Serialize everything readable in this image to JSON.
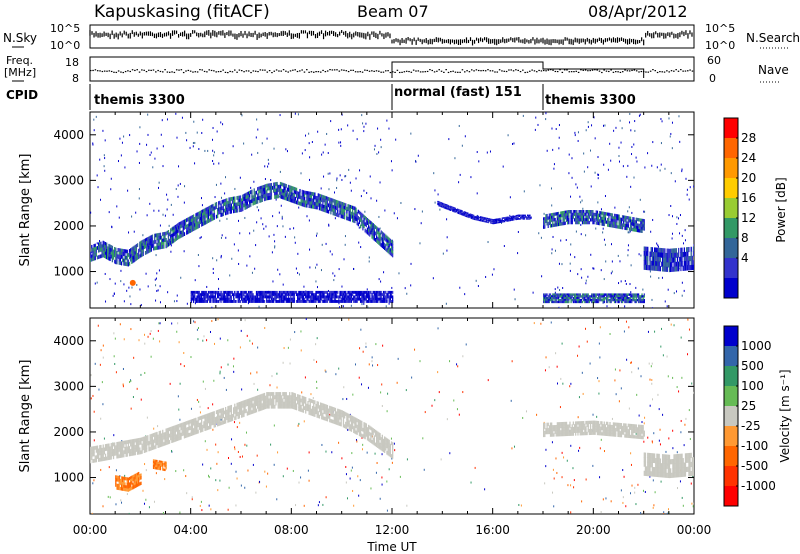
{
  "header": {
    "station": "Kapuskasing (fitACF)",
    "beam": "Beam 07",
    "date": "08/Apr/2012"
  },
  "left_labels": {
    "nsky": "N.Sky",
    "freq_line1": "Freq.",
    "freq_line2": "[MHz]",
    "cpid": "CPID"
  },
  "right_labels": {
    "nsearch": "N.Search",
    "nave": "Nave"
  },
  "small_axes": {
    "nsky_ticks": [
      "10^5",
      "10^0"
    ],
    "nsearch_ticks": [
      "10^5",
      "10^0"
    ],
    "freq_ticks": [
      "18",
      "8"
    ],
    "nave_ticks": [
      "60",
      "0"
    ]
  },
  "cpid_segments": [
    {
      "label": "themis 3300",
      "start_hour": 0,
      "end_hour": 12
    },
    {
      "label": "normal (fast) 151",
      "start_hour": 12,
      "end_hour": 18
    },
    {
      "label": "themis 3300",
      "start_hour": 18,
      "end_hour": 24
    }
  ],
  "power_colorbar": {
    "label": "Power [dB]",
    "ticks": [
      "28",
      "24",
      "20",
      "16",
      "12",
      "8",
      "4"
    ],
    "colors": [
      "#ff0000",
      "#ff6600",
      "#ff9900",
      "#ffcc00",
      "#99cc33",
      "#339966",
      "#336699",
      "#3333cc",
      "#0000cc"
    ]
  },
  "velocity_colorbar": {
    "label": "Velocity [m s⁻¹]",
    "ticks": [
      "1000",
      "500",
      "100",
      "25",
      "-25",
      "-100",
      "-500",
      "-1000"
    ],
    "colors": [
      "#0000cc",
      "#3366aa",
      "#339966",
      "#66bb55",
      "#c8c8c0",
      "#ff9933",
      "#ff6600",
      "#ff3300",
      "#ff0000"
    ]
  },
  "chart_data": [
    {
      "type": "heatmap",
      "panel": "power",
      "ylabel": "Slant Range [km]",
      "ylim": [
        200,
        4500
      ],
      "yticks": [
        "4000",
        "3000",
        "2000",
        "1000"
      ],
      "xlim_hours": [
        0,
        24
      ],
      "bands": [
        {
          "t": [
            0,
            0.5,
            1,
            1.5,
            2,
            2.5,
            3,
            3.5,
            4,
            4.5,
            5,
            5.5,
            6,
            6.5,
            7,
            7.5,
            8,
            8.5,
            9,
            9.5,
            10,
            10.5,
            11,
            11.5,
            12
          ],
          "r": [
            1400,
            1500,
            1350,
            1300,
            1500,
            1650,
            1700,
            1900,
            2050,
            2200,
            2350,
            2450,
            2500,
            2650,
            2750,
            2800,
            2700,
            2600,
            2550,
            2450,
            2350,
            2250,
            2000,
            1750,
            1500
          ],
          "width_km": 350,
          "level": 4
        },
        {
          "t": [
            13.8,
            14.5,
            15.2,
            16,
            16.5,
            17,
            17.5
          ],
          "r": [
            2500,
            2350,
            2200,
            2100,
            2150,
            2200,
            2200
          ],
          "width_km": 100,
          "level": 2
        },
        {
          "t": [
            18,
            19,
            20,
            21,
            22
          ],
          "r": [
            2100,
            2200,
            2200,
            2100,
            2000
          ],
          "width_km": 300,
          "level": 4
        },
        {
          "t": [
            22,
            23,
            24
          ],
          "r": [
            1300,
            1250,
            1300
          ],
          "width_km": 500,
          "level": 3
        },
        {
          "t": [
            4,
            5,
            6,
            7,
            8,
            9,
            10,
            11,
            12
          ],
          "r": [
            450,
            450,
            450,
            450,
            450,
            450,
            450,
            450,
            450
          ],
          "width_km": 250,
          "level": 1
        },
        {
          "t": [
            18,
            20,
            22
          ],
          "r": [
            420,
            420,
            420
          ],
          "width_km": 200,
          "level": 4
        }
      ],
      "hotspot": {
        "t": 1.7,
        "r": 750,
        "level": 28
      }
    },
    {
      "type": "heatmap",
      "panel": "velocity",
      "ylabel": "Slant Range [km]",
      "xlabel": "Time UT",
      "ylim": [
        200,
        4500
      ],
      "yticks": [
        "4000",
        "3000",
        "2000",
        "1000"
      ],
      "xticks": [
        "00:00",
        "04:00",
        "08:00",
        "12:00",
        "16:00",
        "20:00",
        "00:00"
      ],
      "xlim_hours": [
        0,
        24
      ],
      "bands": [
        {
          "t": [
            0,
            1,
            2,
            3,
            4,
            5,
            6,
            7,
            8,
            9,
            10,
            11,
            12
          ],
          "r": [
            1500,
            1600,
            1700,
            1900,
            2100,
            2300,
            2500,
            2700,
            2700,
            2500,
            2300,
            2000,
            1600
          ],
          "width_km": 350,
          "level": 0
        },
        {
          "t": [
            18,
            20,
            22
          ],
          "r": [
            2050,
            2100,
            2000
          ],
          "width_km": 300,
          "level": 0
        },
        {
          "t": [
            22,
            23,
            24
          ],
          "r": [
            1300,
            1250,
            1300
          ],
          "width_km": 500,
          "level": 0
        },
        {
          "t": [
            1,
            1.5,
            2
          ],
          "r": [
            900,
            850,
            1000
          ],
          "width_km": 300,
          "level": -400
        },
        {
          "t": [
            2.5,
            3
          ],
          "r": [
            1300,
            1250
          ],
          "width_km": 200,
          "level": -400
        }
      ]
    }
  ]
}
